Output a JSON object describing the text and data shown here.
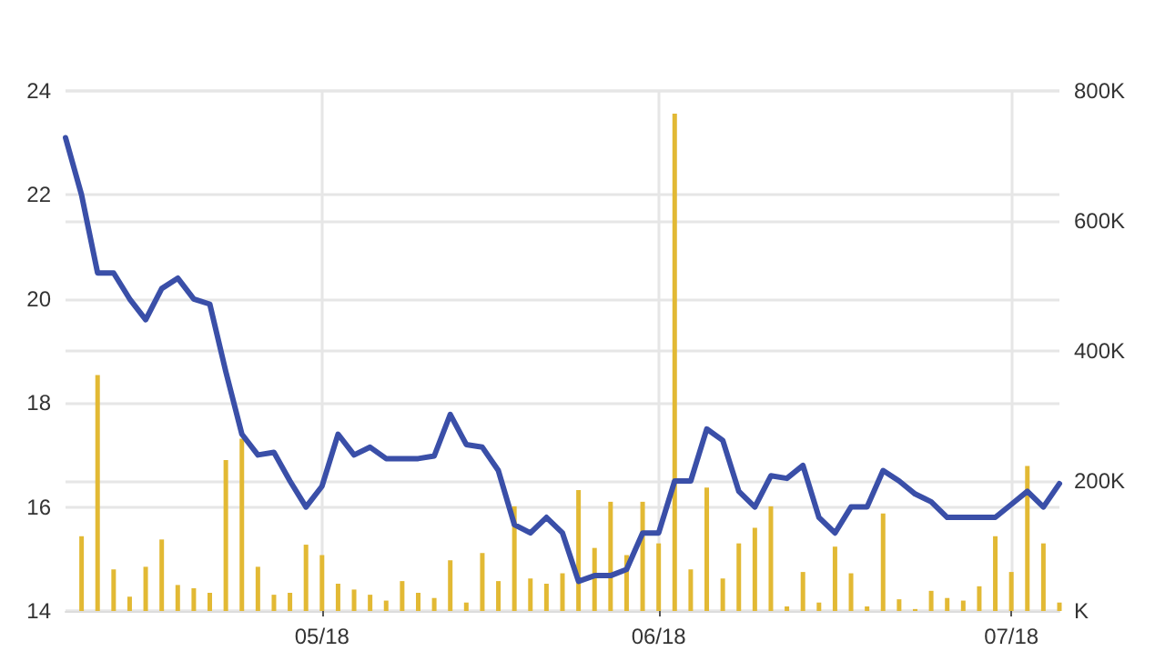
{
  "chart_data": {
    "type": "line",
    "categories": [
      null,
      null,
      null,
      null,
      null,
      null,
      null,
      null,
      null,
      null,
      null,
      null,
      null,
      null,
      null,
      null,
      "05/18",
      null,
      null,
      null,
      null,
      null,
      null,
      null,
      null,
      null,
      null,
      null,
      null,
      null,
      null,
      null,
      null,
      null,
      null,
      null,
      null,
      "06/18",
      null,
      null,
      null,
      null,
      null,
      null,
      null,
      null,
      null,
      null,
      null,
      null,
      null,
      null,
      null,
      null,
      null,
      null,
      null,
      null,
      null,
      "07/18",
      null,
      null,
      null
    ],
    "series": [
      {
        "type": "bar",
        "axis": "y2",
        "color": "#e2b934",
        "values": [
          null,
          115,
          363,
          64,
          22,
          68,
          110,
          40,
          35,
          28,
          232,
          265,
          68,
          25,
          28,
          102,
          86,
          42,
          33,
          25,
          16,
          46,
          28,
          20,
          78,
          13,
          89,
          46,
          161,
          50,
          42,
          58,
          186,
          97,
          168,
          86,
          168,
          104,
          765,
          64,
          190,
          50,
          104,
          128,
          161,
          7,
          60,
          13,
          99,
          58,
          7,
          150,
          18,
          3,
          31,
          20,
          16,
          38,
          115,
          60,
          223,
          104,
          13
        ]
      },
      {
        "color": "#3a4fa8",
        "values": [
          23.1,
          22.0,
          20.5,
          20.5,
          20.0,
          19.6,
          20.2,
          20.4,
          20.0,
          19.9,
          18.6,
          17.4,
          17.0,
          17.05,
          16.5,
          16.0,
          16.4,
          17.4,
          17.0,
          17.15,
          16.93,
          16.93,
          16.93,
          16.98,
          17.78,
          17.2,
          17.15,
          16.7,
          15.66,
          15.5,
          15.8,
          15.5,
          14.57,
          14.68,
          14.68,
          14.8,
          15.5,
          15.5,
          16.5,
          16.5,
          17.5,
          17.28,
          16.3,
          16.0,
          16.6,
          16.55,
          16.8,
          15.8,
          15.5,
          16.0,
          16.0,
          16.7,
          16.5,
          16.25,
          16.1,
          15.8,
          15.8,
          15.8,
          15.8,
          16.05,
          16.3,
          16.0,
          16.45
        ]
      }
    ],
    "ylim": [
      14,
      24
    ],
    "yticks": [
      14,
      16,
      18,
      20,
      22,
      24
    ],
    "y2lim": [
      0,
      800
    ],
    "y2ticks": [
      {
        "value": 0,
        "label": "K"
      },
      {
        "value": 200,
        "label": "200K"
      },
      {
        "value": 400,
        "label": "400K"
      },
      {
        "value": 600,
        "label": "600K"
      },
      {
        "value": 800,
        "label": "800K"
      }
    ],
    "grid": true,
    "marker": "none"
  }
}
